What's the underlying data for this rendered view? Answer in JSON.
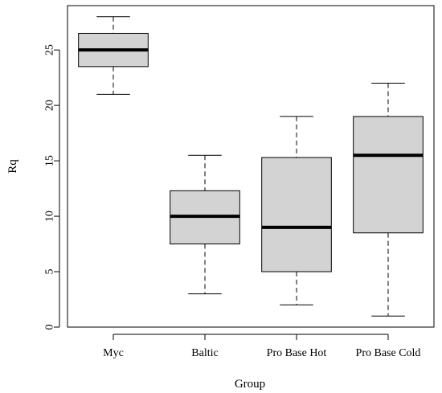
{
  "chart_data": {
    "type": "boxplot",
    "xlabel": "Group",
    "ylabel": "Rq",
    "ylim": [
      0,
      29
    ],
    "yticks": [
      0,
      5,
      10,
      15,
      20,
      25
    ],
    "grid": false,
    "box_fill": "#d3d3d3",
    "box_stroke": "#000000",
    "groups": [
      {
        "name": "Myc",
        "min": 21,
        "q1": 23.5,
        "median": 25,
        "q3": 26.5,
        "max": 28
      },
      {
        "name": "Baltic",
        "min": 3,
        "q1": 7.5,
        "median": 10,
        "q3": 12.3,
        "max": 15.5
      },
      {
        "name": "Pro Base Hot",
        "min": 2,
        "q1": 5,
        "median": 9,
        "q3": 15.3,
        "max": 19
      },
      {
        "name": "Pro Base Cold",
        "min": 1,
        "q1": 8.5,
        "median": 15.5,
        "q3": 19,
        "max": 22
      }
    ]
  }
}
